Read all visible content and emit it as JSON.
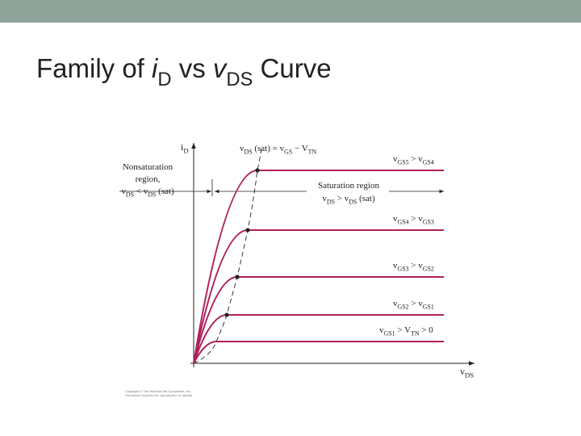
{
  "header": {
    "title": [
      {
        "text": "Family of "
      },
      {
        "text": "i"
      },
      {
        "text": "D",
        "sub": true
      },
      {
        "text": " vs "
      },
      {
        "text": "v"
      },
      {
        "text": "DS",
        "sub": true
      },
      {
        "text": " Curve"
      }
    ]
  },
  "diagram": {
    "y_axis_label": [
      {
        "text": "i"
      },
      {
        "text": "D",
        "sub": true
      }
    ],
    "x_axis_label": [
      {
        "text": "v"
      },
      {
        "text": "DS",
        "sub": true
      }
    ],
    "boundary_label": [
      {
        "text": "v"
      },
      {
        "text": "DS",
        "sub": true
      },
      {
        "text": " (sat) = v"
      },
      {
        "text": "GS",
        "sub": true
      },
      {
        "text": " − V"
      },
      {
        "text": "TN",
        "sub": true
      }
    ],
    "nonsaturation_label": [
      [
        {
          "text": "Nonsaturation"
        }
      ],
      [
        {
          "text": "region,"
        }
      ],
      [
        {
          "text": "v"
        },
        {
          "text": "DS",
          "sub": true
        },
        {
          "text": " < v"
        },
        {
          "text": "DS",
          "sub": true
        },
        {
          "text": " (sat)"
        }
      ]
    ],
    "saturation_label": [
      [
        {
          "text": "Saturation region"
        }
      ],
      [
        {
          "text": "v"
        },
        {
          "text": "DS",
          "sub": true
        },
        {
          "text": " > v"
        },
        {
          "text": "DS",
          "sub": true
        },
        {
          "text": " (sat)"
        }
      ]
    ],
    "curves": [
      {
        "label": [
          {
            "text": "v"
          },
          {
            "text": "GS5",
            "sub": true
          },
          {
            "text": " > v"
          },
          {
            "text": "GS4",
            "sub": true
          }
        ]
      },
      {
        "label": [
          {
            "text": "v"
          },
          {
            "text": "GS4",
            "sub": true
          },
          {
            "text": " > v"
          },
          {
            "text": "GS3",
            "sub": true
          }
        ]
      },
      {
        "label": [
          {
            "text": "v"
          },
          {
            "text": "GS3",
            "sub": true
          },
          {
            "text": " > v"
          },
          {
            "text": "GS2",
            "sub": true
          }
        ]
      },
      {
        "label": [
          {
            "text": "v"
          },
          {
            "text": "GS2",
            "sub": true
          },
          {
            "text": " > v"
          },
          {
            "text": "GS1",
            "sub": true
          }
        ]
      },
      {
        "label": [
          {
            "text": "v"
          },
          {
            "text": "GS1",
            "sub": true
          },
          {
            "text": " > V"
          },
          {
            "text": "TN",
            "sub": true
          },
          {
            "text": " > 0"
          }
        ]
      }
    ],
    "copyright": [
      "Copyright © The McGraw-Hill Companies, Inc.",
      "Permission required for reproduction or display."
    ]
  }
}
